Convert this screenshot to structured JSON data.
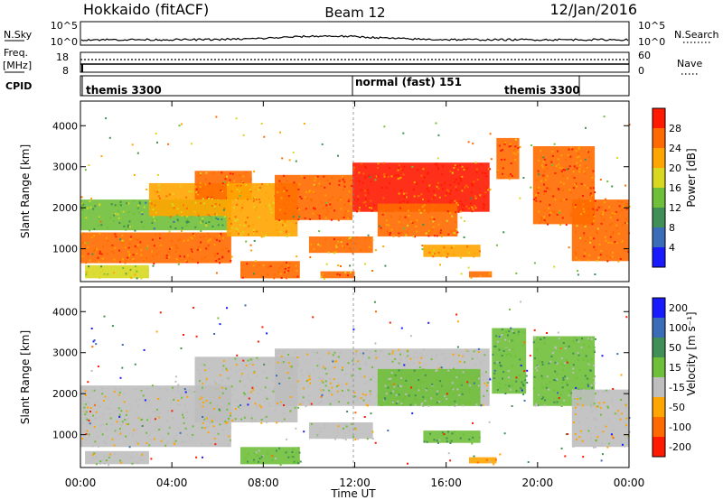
{
  "header": {
    "station": "Hokkaido (fitACF)",
    "beam": "Beam 12",
    "date": "12/Jan/2016"
  },
  "noise_panel": {
    "left_label": "N.Sky",
    "right_label": "N.Search",
    "y_ticks": [
      "10^5",
      "10^0"
    ]
  },
  "freq_panel": {
    "left_label": "Freq.",
    "unit": "[MHz]",
    "left_ticks": [
      "18",
      "8"
    ],
    "right_ticks": [
      "60",
      "0"
    ],
    "right_label": "Nave"
  },
  "cpid_panel": {
    "label": "CPID",
    "segments": [
      "themis 3300",
      "normal (fast) 151",
      "themis 3300"
    ]
  },
  "chart_data": [
    {
      "type": "heatmap",
      "name": "power",
      "xlabel": "",
      "ylabel": "Slant Range [km]",
      "x_ticks": [
        "00:00",
        "04:00",
        "08:00",
        "12:00",
        "16:00",
        "20:00",
        "00:00"
      ],
      "xlim": [
        0,
        24
      ],
      "y_ticks": [
        1000,
        2000,
        3000,
        4000
      ],
      "ylim": [
        200,
        4600
      ],
      "colorbar": {
        "label": "Power [dB]",
        "ticks": [
          4,
          8,
          12,
          16,
          20,
          24,
          28
        ],
        "range": [
          0,
          32
        ],
        "colors": [
          "#1a1aff",
          "#3a6cb8",
          "#3f8f56",
          "#6fbf3a",
          "#d8d820",
          "#ffa500",
          "#ff6a00",
          "#ff1a00"
        ]
      },
      "echo_regions": [
        {
          "t": [
            0.0,
            6.6
          ],
          "r": [
            1450,
            2200
          ],
          "level": 13
        },
        {
          "t": [
            0.0,
            6.6
          ],
          "r": [
            650,
            1400
          ],
          "level": 26
        },
        {
          "t": [
            3.0,
            6.6
          ],
          "r": [
            1800,
            2600
          ],
          "level": 22
        },
        {
          "t": [
            5.0,
            7.5
          ],
          "r": [
            2200,
            2900
          ],
          "level": 25
        },
        {
          "t": [
            6.4,
            9.5
          ],
          "r": [
            1300,
            2600
          ],
          "level": 22
        },
        {
          "t": [
            8.5,
            11.9
          ],
          "r": [
            1700,
            2800
          ],
          "level": 27
        },
        {
          "t": [
            11.9,
            17.9
          ],
          "r": [
            1900,
            3100
          ],
          "level": 28
        },
        {
          "t": [
            13.0,
            16.5
          ],
          "r": [
            1300,
            2100
          ],
          "level": 25
        },
        {
          "t": [
            10.0,
            12.8
          ],
          "r": [
            900,
            1300
          ],
          "level": 24
        },
        {
          "t": [
            15.0,
            17.5
          ],
          "r": [
            800,
            1100
          ],
          "level": 22
        },
        {
          "t": [
            7.0,
            9.6
          ],
          "r": [
            280,
            700
          ],
          "level": 27
        },
        {
          "t": [
            10.5,
            12.0
          ],
          "r": [
            280,
            450
          ],
          "level": 24
        },
        {
          "t": [
            17.0,
            18.0
          ],
          "r": [
            300,
            450
          ],
          "level": 26
        },
        {
          "t": [
            18.2,
            19.2
          ],
          "r": [
            2700,
            3700
          ],
          "level": 26
        },
        {
          "t": [
            19.8,
            22.5
          ],
          "r": [
            1600,
            3500
          ],
          "level": 26
        },
        {
          "t": [
            21.5,
            24.0
          ],
          "r": [
            700,
            2200
          ],
          "level": 25
        },
        {
          "t": [
            0.2,
            3.0
          ],
          "r": [
            280,
            600
          ],
          "level": 16
        }
      ]
    },
    {
      "type": "heatmap",
      "name": "velocity",
      "xlabel": "Time UT",
      "ylabel": "Slant Range [km]",
      "x_ticks": [
        "00:00",
        "04:00",
        "08:00",
        "12:00",
        "16:00",
        "20:00",
        "00:00"
      ],
      "xlim": [
        0,
        24
      ],
      "y_ticks": [
        1000,
        2000,
        3000,
        4000
      ],
      "ylim": [
        200,
        4600
      ],
      "colorbar": {
        "label": "Velocity [m s⁻¹]",
        "ticks": [
          "200",
          "100",
          "50",
          "15",
          "-15",
          "-50",
          "-100",
          "-200"
        ],
        "colors": [
          "#1a1aff",
          "#3a6cb8",
          "#3f8f56",
          "#6fbf3a",
          "#bebebe",
          "#ffa500",
          "#ff6a00",
          "#ff1a00"
        ]
      },
      "echo_regions": [
        {
          "t": [
            0.0,
            6.6
          ],
          "r": [
            700,
            2200
          ],
          "v": 0
        },
        {
          "t": [
            5.0,
            9.5
          ],
          "r": [
            1300,
            2900
          ],
          "v": 0
        },
        {
          "t": [
            8.5,
            17.9
          ],
          "r": [
            1700,
            3100
          ],
          "v": 0
        },
        {
          "t": [
            13.0,
            17.5
          ],
          "r": [
            1700,
            2600
          ],
          "v": 20
        },
        {
          "t": [
            10.0,
            12.8
          ],
          "r": [
            900,
            1300
          ],
          "v": 0
        },
        {
          "t": [
            15.0,
            17.5
          ],
          "r": [
            800,
            1100
          ],
          "v": 30
        },
        {
          "t": [
            7.0,
            9.6
          ],
          "r": [
            280,
            700
          ],
          "v": 30
        },
        {
          "t": [
            17.0,
            18.2
          ],
          "r": [
            300,
            450
          ],
          "v": -30
        },
        {
          "t": [
            18.0,
            19.5
          ],
          "r": [
            2000,
            3600
          ],
          "v": 30
        },
        {
          "t": [
            19.8,
            22.5
          ],
          "r": [
            1700,
            3400
          ],
          "v": 25
        },
        {
          "t": [
            21.5,
            24.0
          ],
          "r": [
            700,
            2100
          ],
          "v": 0
        },
        {
          "t": [
            0.2,
            3.0
          ],
          "r": [
            280,
            600
          ],
          "v": 0
        }
      ]
    }
  ]
}
